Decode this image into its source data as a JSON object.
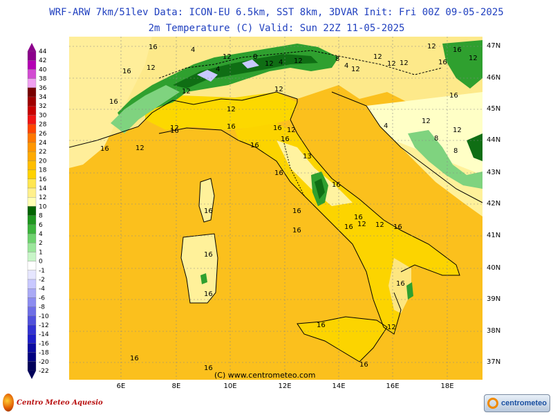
{
  "header": {
    "line1": "WRF-ARW 7km/51lev  Data: ICON-EU 6.5km, SST 8km, 3DVAR  Init: Fri 00Z 09-05-2025",
    "line2": "2m Temperature (C)  Valid: Sun 22Z 11-05-2025"
  },
  "legend": {
    "labels": [
      "44",
      "42",
      "40",
      "38",
      "36",
      "34",
      "32",
      "30",
      "28",
      "26",
      "24",
      "22",
      "20",
      "18",
      "16",
      "14",
      "12",
      "10",
      "8",
      "6",
      "4",
      "2",
      "1",
      "0",
      "-1",
      "-2",
      "-4",
      "-6",
      "-8",
      "-10",
      "-12",
      "-14",
      "-16",
      "-18",
      "-20",
      "-22"
    ],
    "colors": [
      "#8c008c",
      "#b400b4",
      "#d24bd2",
      "#f0a0f0",
      "#780000",
      "#a00000",
      "#c80000",
      "#f01414",
      "#ff4500",
      "#ff7800",
      "#ff9600",
      "#ffaa00",
      "#ffbe00",
      "#ffd200",
      "#ffe650",
      "#fff08c",
      "#ffffb4",
      "#006400",
      "#1e961e",
      "#3cb43c",
      "#6ed26e",
      "#9be69b",
      "#c8f5c8",
      "#ffffff",
      "#e6e6ff",
      "#c8c8ff",
      "#aaaaf5",
      "#8c8cf0",
      "#6e6ee6",
      "#5050dc",
      "#3232d2",
      "#1e1ec8",
      "#0a0aa0",
      "#000080",
      "#00005a"
    ]
  },
  "axes": {
    "lat_labels": [
      "47N",
      "46N",
      "45N",
      "44N",
      "43N",
      "42N",
      "41N",
      "40N",
      "39N",
      "38N",
      "37N"
    ],
    "lon_labels": [
      "6E",
      "8E",
      "10E",
      "12E",
      "14E",
      "16E",
      "18E"
    ]
  },
  "contour_labels": [
    "16",
    "4",
    "12",
    "4",
    "8",
    "12",
    "4",
    "12",
    "8",
    "4",
    "12",
    "12",
    "12",
    "12",
    "12",
    "16",
    "16",
    "16",
    "12",
    "12",
    "16",
    "12",
    "12",
    "16",
    "16",
    "16",
    "12",
    "12",
    "16",
    "12",
    "16",
    "16",
    "13",
    "16",
    "16",
    "16",
    "12",
    "16",
    "12",
    "16",
    "16",
    "16",
    "16",
    "12",
    "16",
    "16",
    "16",
    "16",
    "16",
    "16",
    "16",
    "12",
    "16",
    "12",
    "12",
    "8",
    "8",
    "4"
  ],
  "copyright": "(C) www.centrometeo.com",
  "logos": {
    "left": "Centro Meteo Aquesio",
    "right": "centrometeo"
  },
  "colors": {
    "sea": "#fbc01d",
    "land_warm": "#fcd200",
    "land_mild": "#fff19a",
    "land_cool": "#ffffc4",
    "green_dark": "#0f6e14",
    "green_mid": "#2fa02f",
    "green_light": "#7fd37f",
    "coast": "#000000",
    "header_text": "#1f3fbf"
  }
}
